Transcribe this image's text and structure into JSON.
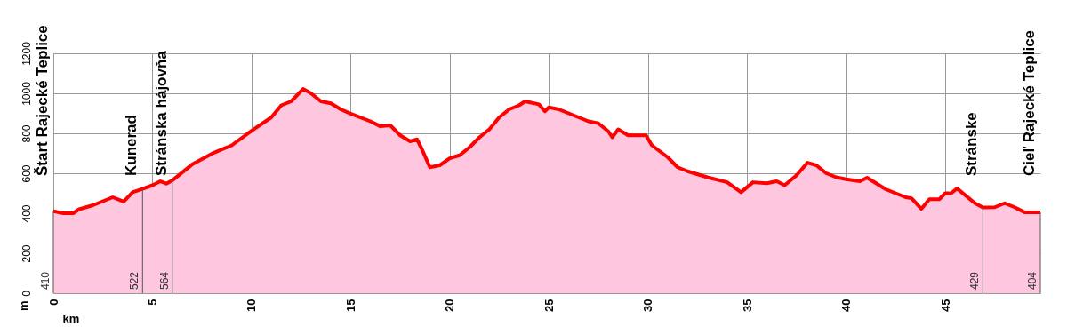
{
  "chart_data": {
    "type": "area",
    "xlabel": "km",
    "ylabel": "m",
    "xlim": [
      0,
      49.8
    ],
    "xticks": [
      0,
      5,
      10,
      15,
      20,
      25,
      30,
      35,
      40,
      45
    ],
    "ylim": [
      0,
      1200
    ],
    "yticks": [
      0,
      200,
      400,
      600,
      800,
      1000,
      1200
    ],
    "grid": true,
    "x": [
      0,
      0.5,
      1,
      1.3,
      2,
      2.5,
      3,
      3.55,
      4,
      4.5,
      5,
      5.4,
      5.7,
      6,
      7,
      8,
      9,
      10,
      11,
      11.5,
      12,
      12.6,
      13,
      13.5,
      14,
      14.5,
      15,
      16,
      16.5,
      17,
      17.5,
      18,
      18.35,
      18.6,
      19,
      19.5,
      20,
      20.5,
      21,
      21.5,
      22,
      22.5,
      23,
      23.5,
      23.8,
      24.5,
      24.8,
      25,
      25.5,
      26,
      26.5,
      27,
      27.5,
      28,
      28.2,
      28.5,
      29,
      29.9,
      30.2,
      31,
      31.5,
      32,
      33,
      34,
      34.7,
      35.3,
      36,
      36.5,
      36.9,
      37.5,
      38.05,
      38.5,
      39,
      39.5,
      40,
      40.7,
      41.06,
      42,
      42.5,
      43,
      43.3,
      43.8,
      44.2,
      44.7,
      45,
      45.3,
      45.6,
      46.5,
      46.9,
      47.5,
      48,
      48.5,
      49,
      49.5,
      49.8
    ],
    "series": [
      {
        "color": "#ff0000",
        "values": [
          410,
          400,
          400,
          420,
          440,
          460,
          480,
          458,
          505,
          522,
          540,
          560,
          548,
          564,
          644,
          698,
          740,
          813,
          880,
          940,
          960,
          1022,
          1000,
          960,
          950,
          920,
          898,
          860,
          835,
          840,
          790,
          760,
          770,
          720,
          630,
          640,
          675,
          690,
          730,
          780,
          820,
          880,
          920,
          940,
          960,
          945,
          910,
          930,
          920,
          900,
          880,
          860,
          850,
          810,
          780,
          820,
          790,
          790,
          740,
          680,
          630,
          610,
          580,
          555,
          505,
          555,
          550,
          560,
          540,
          590,
          653,
          640,
          600,
          580,
          570,
          560,
          578,
          520,
          500,
          480,
          475,
          422,
          470,
          470,
          500,
          500,
          524,
          450,
          429,
          430,
          450,
          430,
          405,
          405,
          404
        ]
      }
    ],
    "ref_lines": [
      {
        "axis": "x",
        "value": 0,
        "label": "Štart Rajecké Teplice"
      },
      {
        "axis": "x",
        "value": 4.5,
        "label": "Kunerad"
      },
      {
        "axis": "x",
        "value": 6,
        "label": "Stránska hájovňa"
      },
      {
        "axis": "x",
        "value": 46.9,
        "label": "Stránske"
      },
      {
        "axis": "x",
        "value": 49.8,
        "label": "Cieľ Rajecké Teplice"
      }
    ],
    "annotations": [
      "410",
      "522",
      "564",
      "429",
      "404"
    ]
  }
}
